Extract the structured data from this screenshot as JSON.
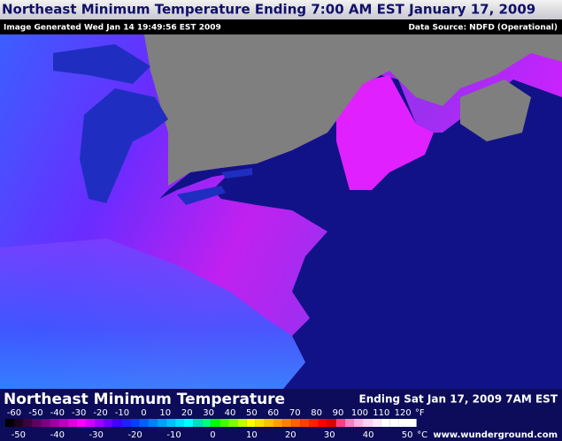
{
  "header": {
    "title": "Northeast Minimum Temperature Ending 7:00 AM EST January 17, 2009",
    "generated": "Image Generated Wed Jan 14 19:49:56 EST 2009",
    "source": "Data Source: NDFD (Operational)"
  },
  "legend": {
    "title": "Northeast Minimum Temperature",
    "valid": "Ending Sat Jan 17, 2009  7AM EST",
    "fahrenheit": [
      -60,
      -50,
      -40,
      -30,
      -20,
      -10,
      0,
      10,
      20,
      30,
      40,
      50,
      60,
      70,
      80,
      90,
      100,
      110,
      120
    ],
    "fahrenheit_unit": "°F",
    "celsius": [
      -50,
      -40,
      -30,
      -20,
      -10,
      0,
      10,
      20,
      30,
      40,
      50
    ],
    "celsius_unit": "°C",
    "site": "www.wunderground.com"
  }
}
